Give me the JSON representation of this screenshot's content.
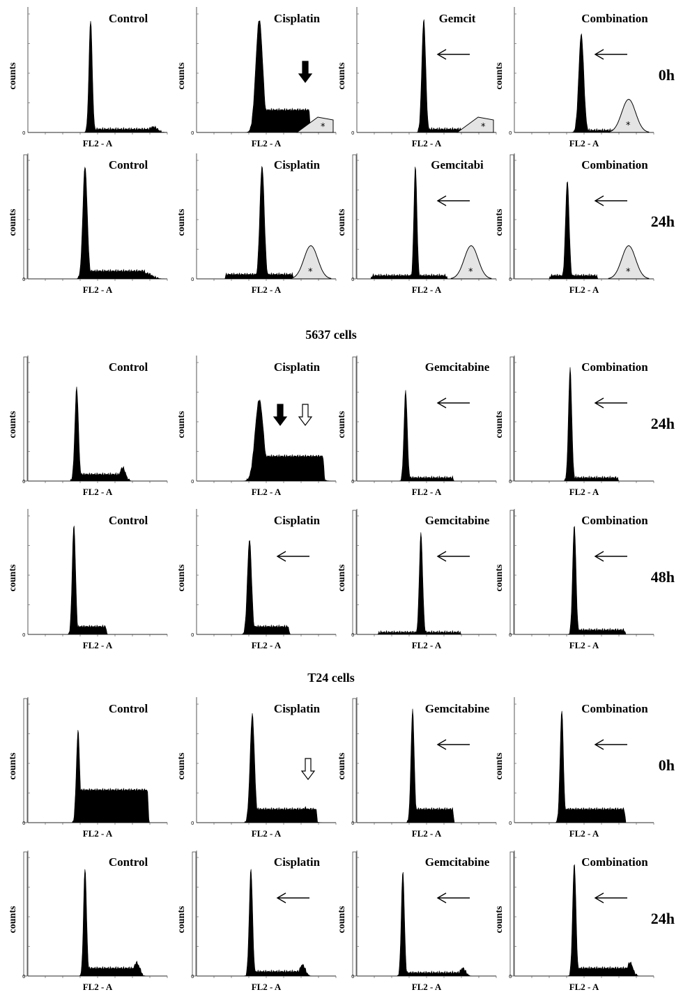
{
  "chart_data": {
    "type": "area",
    "x_axis_label": "FL2 - A",
    "y_axis_label": "counts",
    "groups": [
      {
        "label": "",
        "rows": [
          {
            "time": "0h",
            "panels": [
              {
                "title": "Control",
                "peaks": [
                  {
                    "x": 0.45,
                    "h": 1.0,
                    "w": 0.012
                  },
                  {
                    "x": 0.9,
                    "h": 0.05,
                    "w": 0.03
                  }
                ],
                "plateau": {
                  "from": 0.47,
                  "to": 0.88,
                  "h": 0.03
                },
                "ybar": false,
                "mark": "none",
                "arrow": "none"
              },
              {
                "title": "Cisplatin",
                "peaks": [
                  {
                    "x": 0.45,
                    "h": 1.0,
                    "w": 0.025
                  }
                ],
                "plateau": {
                  "from": 0.47,
                  "to": 0.82,
                  "h": 0.2
                },
                "ybar": false,
                "mark": "tail",
                "arrow": "down-solid"
              },
              {
                "title": "Gemcit",
                "peaks": [
                  {
                    "x": 0.48,
                    "h": 1.0,
                    "w": 0.014
                  }
                ],
                "plateau": {
                  "from": 0.5,
                  "to": 0.95,
                  "h": 0.03
                },
                "ybar": false,
                "mark": "tail",
                "arrow": "left"
              },
              {
                "title": "Combination",
                "peaks": [
                  {
                    "x": 0.48,
                    "h": 0.87,
                    "w": 0.018
                  }
                ],
                "plateau": {
                  "from": 0.5,
                  "to": 0.75,
                  "h": 0.02
                },
                "ybar": false,
                "mark": "hump",
                "arrow": "left"
              }
            ]
          },
          {
            "time": "24h",
            "panels": [
              {
                "title": "Control",
                "peaks": [
                  {
                    "x": 0.41,
                    "h": 1.0,
                    "w": 0.016
                  },
                  {
                    "x": 0.85,
                    "h": 0.05,
                    "w": 0.04
                  }
                ],
                "plateau": {
                  "from": 0.43,
                  "to": 0.85,
                  "h": 0.07
                },
                "ybar": true,
                "mark": "none",
                "arrow": "none"
              },
              {
                "title": "Cisplatin",
                "peaks": [
                  {
                    "x": 0.47,
                    "h": 1.0,
                    "w": 0.016
                  }
                ],
                "plateau": {
                  "from": 0.2,
                  "to": 0.7,
                  "h": 0.04
                },
                "ybar": false,
                "mark": "hump",
                "arrow": "none"
              },
              {
                "title": "Gemcitabi",
                "peaks": [
                  {
                    "x": 0.42,
                    "h": 1.0,
                    "w": 0.011
                  }
                ],
                "plateau": {
                  "from": 0.1,
                  "to": 0.65,
                  "h": 0.03
                },
                "ybar": true,
                "mark": "hump",
                "arrow": "left"
              },
              {
                "title": "Combination",
                "peaks": [
                  {
                    "x": 0.38,
                    "h": 0.87,
                    "w": 0.013
                  }
                ],
                "plateau": {
                  "from": 0.25,
                  "to": 0.6,
                  "h": 0.03
                },
                "ybar": true,
                "mark": "hump",
                "arrow": "left"
              }
            ]
          }
        ]
      },
      {
        "label": "5637 cells",
        "rows": [
          {
            "time": "24h",
            "panels": [
              {
                "title": "Control",
                "peaks": [
                  {
                    "x": 0.35,
                    "h": 0.83,
                    "w": 0.013
                  },
                  {
                    "x": 0.68,
                    "h": 0.12,
                    "w": 0.02
                  }
                ],
                "plateau": {
                  "from": 0.37,
                  "to": 0.68,
                  "h": 0.06
                },
                "ybar": true,
                "mark": "none",
                "arrow": "none"
              },
              {
                "title": "Cisplatin",
                "peaks": [
                  {
                    "x": 0.45,
                    "h": 0.72,
                    "w": 0.03
                  },
                  {
                    "x": 0.82,
                    "h": 0.22,
                    "w": 0.04
                  }
                ],
                "plateau": {
                  "from": 0.45,
                  "to": 0.92,
                  "h": 0.22
                },
                "ybar": false,
                "mark": "none",
                "arrow": "down-solid-hollow"
              },
              {
                "title": "Gemcitabine",
                "peaks": [
                  {
                    "x": 0.35,
                    "h": 0.8,
                    "w": 0.012
                  }
                ],
                "plateau": {
                  "from": 0.37,
                  "to": 0.7,
                  "h": 0.03
                },
                "ybar": true,
                "mark": "none",
                "arrow": "left"
              },
              {
                "title": "Combination",
                "peaks": [
                  {
                    "x": 0.4,
                    "h": 1.0,
                    "w": 0.012
                  }
                ],
                "plateau": {
                  "from": 0.42,
                  "to": 0.75,
                  "h": 0.03
                },
                "ybar": true,
                "mark": "none",
                "arrow": "left"
              }
            ]
          },
          {
            "time": "48h",
            "panels": [
              {
                "title": "Control",
                "peaks": [
                  {
                    "x": 0.33,
                    "h": 0.97,
                    "w": 0.012
                  }
                ],
                "plateau": {
                  "from": 0.35,
                  "to": 0.57,
                  "h": 0.07
                },
                "ybar": false,
                "mark": "none",
                "arrow": "none"
              },
              {
                "title": "Cisplatin",
                "peaks": [
                  {
                    "x": 0.38,
                    "h": 0.84,
                    "w": 0.015
                  }
                ],
                "plateau": {
                  "from": 0.4,
                  "to": 0.67,
                  "h": 0.07
                },
                "ybar": false,
                "mark": "none",
                "arrow": "left"
              },
              {
                "title": "Gemcitabine",
                "peaks": [
                  {
                    "x": 0.46,
                    "h": 0.9,
                    "w": 0.012
                  }
                ],
                "plateau": {
                  "from": 0.15,
                  "to": 0.75,
                  "h": 0.02
                },
                "ybar": true,
                "mark": "none",
                "arrow": "left"
              },
              {
                "title": "Combination",
                "peaks": [
                  {
                    "x": 0.43,
                    "h": 0.97,
                    "w": 0.012
                  }
                ],
                "plateau": {
                  "from": 0.45,
                  "to": 0.8,
                  "h": 0.04
                },
                "ybar": true,
                "mark": "none",
                "arrow": "left"
              }
            ]
          }
        ]
      },
      {
        "label": "T24 cells",
        "rows": [
          {
            "time": "0h",
            "panels": [
              {
                "title": "Control",
                "peaks": [
                  {
                    "x": 0.36,
                    "h": 0.82,
                    "w": 0.012
                  }
                ],
                "plateau": {
                  "from": 0.33,
                  "to": 0.87,
                  "h": 0.29
                },
                "ybar": true,
                "mark": "none",
                "arrow": "none"
              },
              {
                "title": "Cisplatin",
                "peaks": [
                  {
                    "x": 0.4,
                    "h": 0.96,
                    "w": 0.016
                  },
                  {
                    "x": 0.78,
                    "h": 0.13,
                    "w": 0.035
                  }
                ],
                "plateau": {
                  "from": 0.4,
                  "to": 0.87,
                  "h": 0.12
                },
                "ybar": false,
                "mark": "none",
                "arrow": "down-hollow"
              },
              {
                "title": "Gemcitabine",
                "peaks": [
                  {
                    "x": 0.4,
                    "h": 1.0,
                    "w": 0.012
                  }
                ],
                "plateau": {
                  "from": 0.4,
                  "to": 0.7,
                  "h": 0.12
                },
                "ybar": true,
                "mark": "none",
                "arrow": "left"
              },
              {
                "title": "Combination",
                "peaks": [
                  {
                    "x": 0.34,
                    "h": 1.0,
                    "w": 0.012
                  }
                ],
                "plateau": {
                  "from": 0.34,
                  "to": 0.8,
                  "h": 0.12
                },
                "ybar": false,
                "mark": "none",
                "arrow": "left"
              }
            ]
          },
          {
            "time": "24h",
            "panels": [
              {
                "title": "Control",
                "peaks": [
                  {
                    "x": 0.41,
                    "h": 0.96,
                    "w": 0.011
                  },
                  {
                    "x": 0.78,
                    "h": 0.12,
                    "w": 0.02
                  }
                ],
                "plateau": {
                  "from": 0.42,
                  "to": 0.82,
                  "h": 0.07
                },
                "ybar": true,
                "mark": "none",
                "arrow": "none"
              },
              {
                "title": "Cisplatin",
                "peaks": [
                  {
                    "x": 0.39,
                    "h": 0.95,
                    "w": 0.012
                  },
                  {
                    "x": 0.76,
                    "h": 0.1,
                    "w": 0.02
                  }
                ],
                "plateau": {
                  "from": 0.4,
                  "to": 0.8,
                  "h": 0.04
                },
                "ybar": true,
                "mark": "none",
                "arrow": "left"
              },
              {
                "title": "Gemcitabine",
                "peaks": [
                  {
                    "x": 0.33,
                    "h": 0.93,
                    "w": 0.011
                  },
                  {
                    "x": 0.76,
                    "h": 0.07,
                    "w": 0.02
                  }
                ],
                "plateau": {
                  "from": 0.34,
                  "to": 0.8,
                  "h": 0.03
                },
                "ybar": true,
                "mark": "none",
                "arrow": "left"
              },
              {
                "title": "Combination",
                "peaks": [
                  {
                    "x": 0.43,
                    "h": 1.0,
                    "w": 0.012
                  },
                  {
                    "x": 0.83,
                    "h": 0.12,
                    "w": 0.02
                  }
                ],
                "plateau": {
                  "from": 0.44,
                  "to": 0.86,
                  "h": 0.07
                },
                "ybar": true,
                "mark": "none",
                "arrow": "left"
              }
            ]
          }
        ]
      }
    ]
  }
}
